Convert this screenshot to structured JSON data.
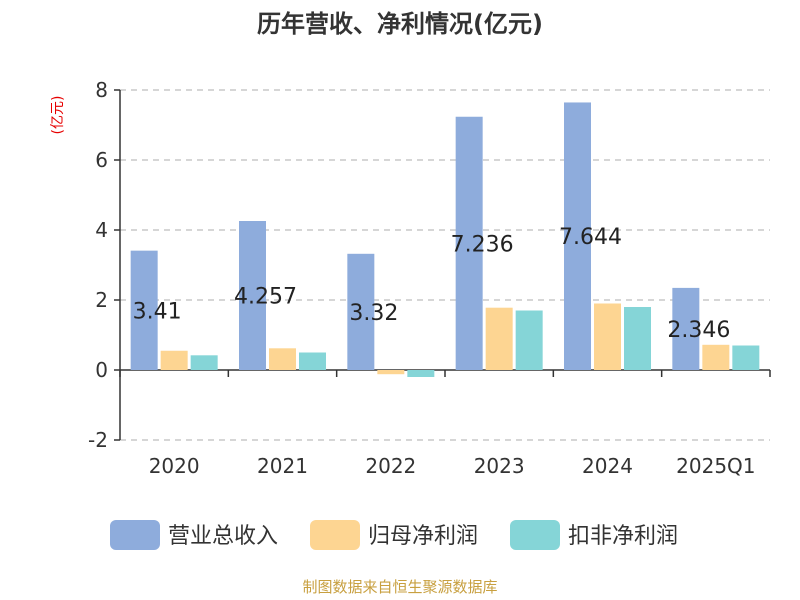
{
  "chart_data": {
    "type": "bar",
    "title": "历年营收、净利情况(亿元)",
    "ylabel": "(亿元)",
    "categories": [
      "2020",
      "2021",
      "2022",
      "2023",
      "2024",
      "2025Q1"
    ],
    "ylim": [
      -2,
      8
    ],
    "yticks": [
      "8",
      "6",
      "4",
      "2",
      "0",
      "-2"
    ],
    "grid": true,
    "legend_position": "bottom",
    "series": [
      {
        "name": "营业总收入",
        "color": "#8eacdc",
        "values": [
          3.41,
          4.257,
          3.32,
          7.236,
          7.644,
          2.346
        ],
        "labels": [
          "3.41",
          "4.257",
          "3.32",
          "7.236",
          "7.644",
          "2.346"
        ]
      },
      {
        "name": "归母净利润",
        "color": "#fdd592",
        "values": [
          0.55,
          0.62,
          -0.12,
          1.78,
          1.9,
          0.72
        ]
      },
      {
        "name": "扣非净利润",
        "color": "#85d5d7",
        "values": [
          0.42,
          0.5,
          -0.2,
          1.7,
          1.8,
          0.7
        ]
      }
    ]
  },
  "footer": {
    "source": "制图数据来自恒生聚源数据库"
  }
}
